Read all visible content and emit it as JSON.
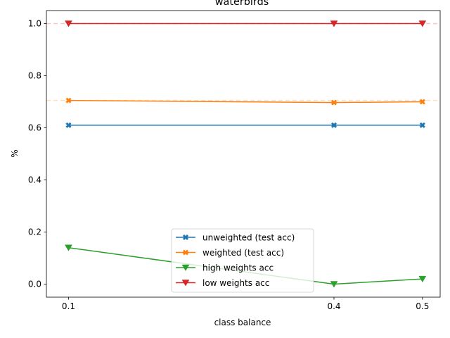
{
  "chart_data": {
    "type": "line",
    "title": "waterbirds",
    "xlabel": "class balance",
    "ylabel": "%",
    "x": [
      0.1,
      0.4,
      0.5
    ],
    "xlim": [
      0.075,
      0.52
    ],
    "ylim": [
      -0.05,
      1.05
    ],
    "xticks": [
      0.1,
      0.4,
      0.5
    ],
    "xtick_labels": [
      "0.1",
      "0.4",
      "0.5"
    ],
    "yticks": [
      0.0,
      0.2,
      0.4,
      0.6,
      0.8,
      1.0
    ],
    "ytick_labels": [
      "0.0",
      "0.2",
      "0.4",
      "0.6",
      "0.8",
      "1.0"
    ],
    "grid": false,
    "legend_position": "bottom-center",
    "series": [
      {
        "name": "unweighted (test acc)",
        "values": [
          0.61,
          0.61,
          0.61
        ],
        "color": "#1f77b4",
        "marker": "x-filled"
      },
      {
        "name": "weighted (test acc)",
        "values": [
          0.705,
          0.697,
          0.7
        ],
        "color": "#ff7f0e",
        "marker": "x-filled"
      },
      {
        "name": "high weights acc",
        "values": [
          0.14,
          0.0,
          0.02
        ],
        "color": "#2ca02c",
        "marker": "triangle-down"
      },
      {
        "name": "low weights acc",
        "values": [
          1.0,
          1.0,
          1.0
        ],
        "color": "#d62728",
        "marker": "triangle-down"
      }
    ],
    "reference_lines": [
      {
        "y": 1.0,
        "color": "#d62728",
        "style": "dashed"
      },
      {
        "y": 0.705,
        "color": "#ff7f0e",
        "style": "dashed"
      }
    ]
  }
}
